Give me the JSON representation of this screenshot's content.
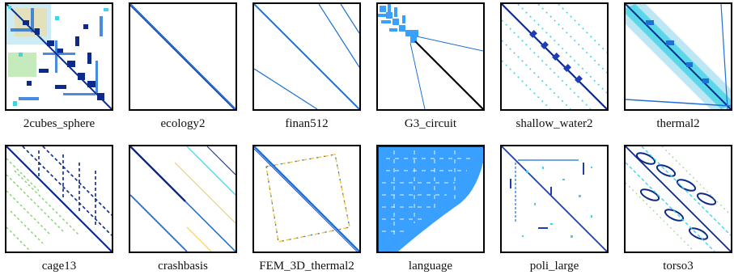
{
  "figure": {
    "matrices": [
      {
        "id": "2cubes_sphere",
        "label": "2cubes_sphere"
      },
      {
        "id": "ecology2",
        "label": "ecology2"
      },
      {
        "id": "finan512",
        "label": "finan512"
      },
      {
        "id": "G3_circuit",
        "label": "G3_circuit"
      },
      {
        "id": "shallow_water2",
        "label": "shallow_water2"
      },
      {
        "id": "thermal2",
        "label": "thermal2"
      },
      {
        "id": "cage13",
        "label": "cage13"
      },
      {
        "id": "crashbasis",
        "label": "crashbasis"
      },
      {
        "id": "FEM_3D_thermal2",
        "label": "FEM_3D_thermal2"
      },
      {
        "id": "language",
        "label": "language"
      },
      {
        "id": "poli_large",
        "label": "poli_large"
      },
      {
        "id": "torso3",
        "label": "torso3"
      }
    ],
    "colors": {
      "dark_blue": "#0b2a8a",
      "mid_blue": "#1f6fd6",
      "light_blue": "#3aa0ff",
      "cyan": "#41d3e6",
      "yellow": "#f2c94c",
      "green": "#7fd36b",
      "black": "#000000"
    }
  }
}
